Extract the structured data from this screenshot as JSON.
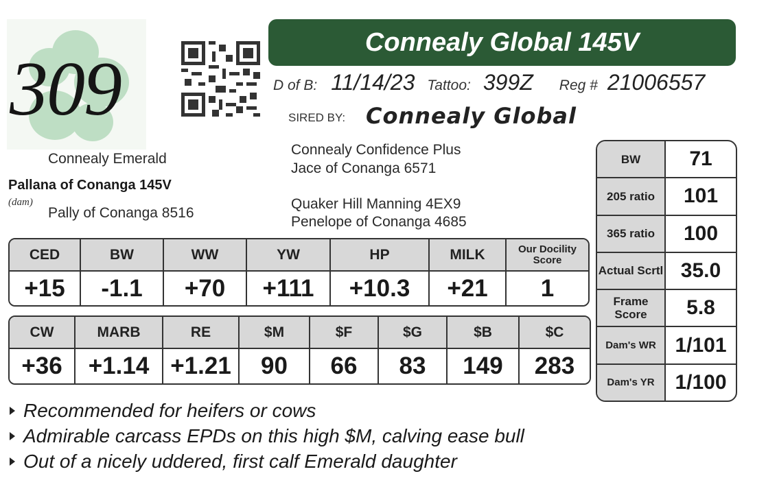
{
  "lot_number": "309",
  "title": "Connealy Global 145V",
  "info": {
    "dob_label": "D of B:",
    "dob": "11/14/23",
    "tattoo_label": "Tattoo:",
    "tattoo": "399Z",
    "reg_label": "Reg #",
    "reg": "21006557"
  },
  "sire": {
    "label": "SIRED BY:",
    "name": "Connealy Global",
    "sire_sire": "Connealy Confidence Plus",
    "sire_dam": "Jace of Conanga 6571"
  },
  "dam": {
    "sire": "Connealy Emerald",
    "name": "Pallana of Conanga 145V",
    "tag": "(dam)",
    "dam": "Pally of Conanga 8516",
    "maternal_1": "Quaker Hill Manning 4EX9",
    "maternal_2": "Penelope of Conanga 4685"
  },
  "epd_top": {
    "headers": [
      "CED",
      "BW",
      "WW",
      "YW",
      "HP",
      "MILK",
      "Our Docility Score"
    ],
    "values": [
      "+15",
      "-1.1",
      "+70",
      "+111",
      "+10.3",
      "+21",
      "1"
    ]
  },
  "epd_bottom": {
    "headers": [
      "CW",
      "MARB",
      "RE",
      "$M",
      "$F",
      "$G",
      "$B",
      "$C"
    ],
    "values": [
      "+36",
      "+1.14",
      "+1.21",
      "90",
      "66",
      "83",
      "149",
      "283"
    ]
  },
  "stats": [
    {
      "label": "BW",
      "value": "71"
    },
    {
      "label": "205 ratio",
      "value": "101"
    },
    {
      "label": "365 ratio",
      "value": "100"
    },
    {
      "label": "Actual Scrtl",
      "value": "35.0"
    },
    {
      "label": "Frame Score",
      "value": "5.8"
    },
    {
      "label": "Dam's WR",
      "value": "1/101"
    },
    {
      "label": "Dam's YR",
      "value": "1/100"
    }
  ],
  "bullets": [
    "Recommended for heifers or cows",
    "Admirable carcass EPDs on this high $M, calving ease bull",
    "Out of a nicely uddered, first calf Emerald daughter"
  ],
  "colors": {
    "banner": "#2b5a35",
    "header_fill": "#d8d8d8",
    "shamrock": "#b9dcbf"
  },
  "icons": {
    "logo": "shamrock-logo",
    "qr": "qr-code-icon"
  }
}
